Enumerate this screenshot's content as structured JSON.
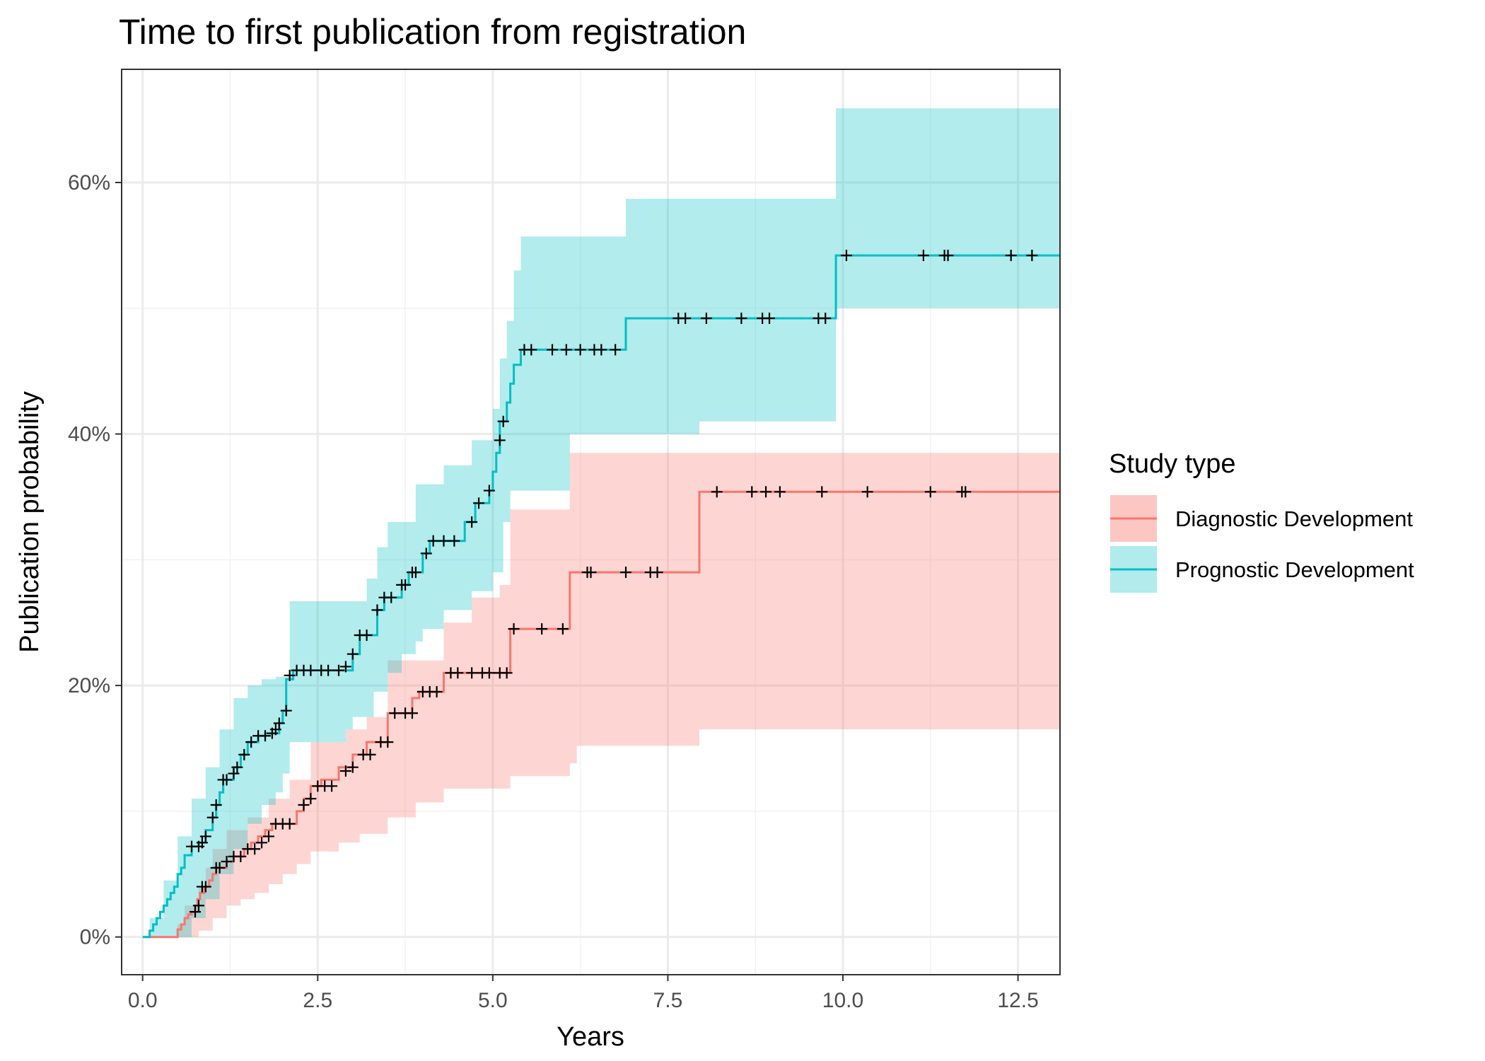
{
  "chart_data": {
    "type": "line",
    "subtype": "kaplan-meier-cumulative-incidence",
    "title": "Time to first publication from registration",
    "xlabel": "Years",
    "ylabel": "Publication probability",
    "xlim": [
      -0.3,
      13.1
    ],
    "ylim": [
      -3,
      69
    ],
    "x_ticks": [
      0,
      2.5,
      5,
      7.5,
      10,
      12.5
    ],
    "x_tick_labels": [
      "0.0",
      "2.5",
      "5.0",
      "7.5",
      "10.0",
      "12.5"
    ],
    "y_ticks": [
      0,
      20,
      40,
      60
    ],
    "y_tick_labels": [
      "0%",
      "20%",
      "40%",
      "60%"
    ],
    "grid": true,
    "legend": {
      "title": "Study type",
      "position": "right",
      "entries": [
        "Diagnostic Development",
        "Prognostic Development"
      ]
    },
    "censor_marker": "+",
    "series": [
      {
        "name": "Diagnostic Development",
        "color": "#F8766D",
        "fill_color": "#FCC7C3",
        "steps": [
          [
            0,
            0
          ],
          [
            0.45,
            0
          ],
          [
            0.5,
            0.6
          ],
          [
            0.55,
            1.0
          ],
          [
            0.6,
            1.5
          ],
          [
            0.65,
            1.8
          ],
          [
            0.7,
            2.0
          ],
          [
            0.75,
            2.5
          ],
          [
            0.78,
            3.0
          ],
          [
            0.82,
            3.5
          ],
          [
            0.88,
            4.0
          ],
          [
            0.95,
            4.5
          ],
          [
            1.0,
            5.0
          ],
          [
            1.05,
            5.5
          ],
          [
            1.2,
            6.0
          ],
          [
            1.3,
            6.4
          ],
          [
            1.45,
            7.0
          ],
          [
            1.55,
            7.5
          ],
          [
            1.65,
            8.0
          ],
          [
            1.75,
            8.5
          ],
          [
            1.85,
            9.0
          ],
          [
            2.2,
            10.0
          ],
          [
            2.3,
            11.0
          ],
          [
            2.4,
            12.0
          ],
          [
            2.55,
            12.5
          ],
          [
            2.8,
            13.5
          ],
          [
            3.0,
            14.5
          ],
          [
            3.2,
            15.5
          ],
          [
            3.5,
            17.8
          ],
          [
            3.85,
            19.0
          ],
          [
            3.95,
            19.5
          ],
          [
            4.3,
            21.0
          ],
          [
            5.25,
            24.5
          ],
          [
            6.1,
            29.0
          ],
          [
            7.95,
            35.4
          ],
          [
            13.1,
            35.4
          ]
        ],
        "lower": [
          [
            0,
            0
          ],
          [
            0.6,
            0
          ],
          [
            0.8,
            0.5
          ],
          [
            1.0,
            1.5
          ],
          [
            1.2,
            2.5
          ],
          [
            1.4,
            3.0
          ],
          [
            1.6,
            3.5
          ],
          [
            1.8,
            4.2
          ],
          [
            2.0,
            5.0
          ],
          [
            2.2,
            5.8
          ],
          [
            2.4,
            6.8
          ],
          [
            2.8,
            7.5
          ],
          [
            3.1,
            8.2
          ],
          [
            3.5,
            9.5
          ],
          [
            3.9,
            10.7
          ],
          [
            4.3,
            11.8
          ],
          [
            5.25,
            12.8
          ],
          [
            6.1,
            13.8
          ],
          [
            6.2,
            15.2
          ],
          [
            7.95,
            15.2
          ],
          [
            7.95,
            16.5
          ],
          [
            13.1,
            16.5
          ]
        ],
        "upper": [
          [
            0,
            0
          ],
          [
            0.5,
            1.0
          ],
          [
            0.6,
            2.5
          ],
          [
            0.8,
            4.0
          ],
          [
            0.9,
            5.5
          ],
          [
            1.0,
            7.0
          ],
          [
            1.2,
            8.5
          ],
          [
            1.5,
            9.5
          ],
          [
            1.8,
            11.0
          ],
          [
            2.1,
            12.5
          ],
          [
            2.4,
            15.5
          ],
          [
            2.9,
            16.5
          ],
          [
            3.2,
            17.5
          ],
          [
            3.5,
            22.0
          ],
          [
            4.3,
            25.0
          ],
          [
            4.7,
            27.0
          ],
          [
            5.1,
            28.0
          ],
          [
            5.25,
            34.0
          ],
          [
            6.1,
            37.0
          ],
          [
            6.1,
            38.5
          ],
          [
            7.95,
            38.5
          ],
          [
            7.95,
            38.5
          ],
          [
            13.1,
            38.5
          ]
        ],
        "censored": [
          [
            0.75,
            2.0
          ],
          [
            0.8,
            2.5
          ],
          [
            0.85,
            4.0
          ],
          [
            0.9,
            4.0
          ],
          [
            1.05,
            5.5
          ],
          [
            1.1,
            5.5
          ],
          [
            1.2,
            6.0
          ],
          [
            1.3,
            6.4
          ],
          [
            1.4,
            6.4
          ],
          [
            1.5,
            7.0
          ],
          [
            1.6,
            7.0
          ],
          [
            1.7,
            7.5
          ],
          [
            1.8,
            8.0
          ],
          [
            1.9,
            9.0
          ],
          [
            2.0,
            9.0
          ],
          [
            2.1,
            9.0
          ],
          [
            2.3,
            10.5
          ],
          [
            2.4,
            11.0
          ],
          [
            2.5,
            12.0
          ],
          [
            2.6,
            12.0
          ],
          [
            2.7,
            12.0
          ],
          [
            2.9,
            13.2
          ],
          [
            3.0,
            13.5
          ],
          [
            3.15,
            14.5
          ],
          [
            3.25,
            14.5
          ],
          [
            3.4,
            15.5
          ],
          [
            3.5,
            15.5
          ],
          [
            3.6,
            17.8
          ],
          [
            3.75,
            17.8
          ],
          [
            3.85,
            17.8
          ],
          [
            4.0,
            19.5
          ],
          [
            4.1,
            19.5
          ],
          [
            4.2,
            19.5
          ],
          [
            4.4,
            21.0
          ],
          [
            4.5,
            21.0
          ],
          [
            4.7,
            21.0
          ],
          [
            4.85,
            21.0
          ],
          [
            4.95,
            21.0
          ],
          [
            5.1,
            21.0
          ],
          [
            5.2,
            21.0
          ],
          [
            5.3,
            24.5
          ],
          [
            5.7,
            24.5
          ],
          [
            6.0,
            24.5
          ],
          [
            6.35,
            29.0
          ],
          [
            6.4,
            29.0
          ],
          [
            6.9,
            29.0
          ],
          [
            7.25,
            29.0
          ],
          [
            7.35,
            29.0
          ],
          [
            8.2,
            35.4
          ],
          [
            8.7,
            35.4
          ],
          [
            8.9,
            35.4
          ],
          [
            9.1,
            35.4
          ],
          [
            9.7,
            35.4
          ],
          [
            10.35,
            35.4
          ],
          [
            11.25,
            35.4
          ],
          [
            11.7,
            35.4
          ],
          [
            11.75,
            35.4
          ]
        ]
      },
      {
        "name": "Prognostic Development",
        "color": "#00BFC4",
        "fill_color": "#B2EBEC",
        "steps": [
          [
            0,
            0
          ],
          [
            0.1,
            0.5
          ],
          [
            0.15,
            1.0
          ],
          [
            0.2,
            1.5
          ],
          [
            0.25,
            2.0
          ],
          [
            0.3,
            2.5
          ],
          [
            0.35,
            3.0
          ],
          [
            0.4,
            3.5
          ],
          [
            0.45,
            4.0
          ],
          [
            0.5,
            5.0
          ],
          [
            0.55,
            5.5
          ],
          [
            0.6,
            6.5
          ],
          [
            0.7,
            7.2
          ],
          [
            0.8,
            7.5
          ],
          [
            0.9,
            8.5
          ],
          [
            1.0,
            9.5
          ],
          [
            1.05,
            10.5
          ],
          [
            1.1,
            11.5
          ],
          [
            1.15,
            12.5
          ],
          [
            1.3,
            13.5
          ],
          [
            1.4,
            14.5
          ],
          [
            1.5,
            15.5
          ],
          [
            1.65,
            16.0
          ],
          [
            1.75,
            16.2
          ],
          [
            1.95,
            17.0
          ],
          [
            2.0,
            18.0
          ],
          [
            2.05,
            20.5
          ],
          [
            2.15,
            21.2
          ],
          [
            3.0,
            22.5
          ],
          [
            3.1,
            24.0
          ],
          [
            3.35,
            26.0
          ],
          [
            3.45,
            27.0
          ],
          [
            3.7,
            28.0
          ],
          [
            3.8,
            29.0
          ],
          [
            4.0,
            30.5
          ],
          [
            4.1,
            31.5
          ],
          [
            4.6,
            33.0
          ],
          [
            4.75,
            34.5
          ],
          [
            4.95,
            35.5
          ],
          [
            5.0,
            37.0
          ],
          [
            5.05,
            38.5
          ],
          [
            5.1,
            41.0
          ],
          [
            5.2,
            42.5
          ],
          [
            5.25,
            44.0
          ],
          [
            5.3,
            45.5
          ],
          [
            5.4,
            46.7
          ],
          [
            6.9,
            49.2
          ],
          [
            9.9,
            54.2
          ],
          [
            13.1,
            54.2
          ]
        ],
        "lower": [
          [
            0,
            0
          ],
          [
            0.5,
            0
          ],
          [
            0.7,
            1.5
          ],
          [
            0.9,
            3.0
          ],
          [
            1.1,
            5.0
          ],
          [
            1.3,
            7.0
          ],
          [
            1.5,
            9.0
          ],
          [
            1.7,
            10.5
          ],
          [
            1.9,
            11.5
          ],
          [
            2.0,
            13.0
          ],
          [
            2.1,
            15.5
          ],
          [
            2.9,
            16.5
          ],
          [
            3.0,
            17.5
          ],
          [
            3.3,
            19.5
          ],
          [
            3.5,
            21.0
          ],
          [
            3.7,
            22.5
          ],
          [
            3.9,
            23.5
          ],
          [
            4.0,
            24.5
          ],
          [
            4.3,
            26.0
          ],
          [
            4.7,
            27.5
          ],
          [
            5.0,
            29.0
          ],
          [
            5.15,
            33.0
          ],
          [
            5.25,
            35.5
          ],
          [
            6.1,
            35.5
          ],
          [
            6.1,
            40.0
          ],
          [
            7.95,
            40.0
          ],
          [
            7.95,
            41.0
          ],
          [
            9.9,
            41.0
          ],
          [
            9.9,
            50.0
          ],
          [
            13.1,
            50.0
          ]
        ],
        "upper": [
          [
            0,
            0
          ],
          [
            0.1,
            1.5
          ],
          [
            0.3,
            4.5
          ],
          [
            0.5,
            8.0
          ],
          [
            0.7,
            11.0
          ],
          [
            0.9,
            13.5
          ],
          [
            1.1,
            16.5
          ],
          [
            1.3,
            19.0
          ],
          [
            1.5,
            20.0
          ],
          [
            1.7,
            20.5
          ],
          [
            1.9,
            20.7
          ],
          [
            2.1,
            26.7
          ],
          [
            2.9,
            26.7
          ],
          [
            3.2,
            28.5
          ],
          [
            3.35,
            31.0
          ],
          [
            3.5,
            33.0
          ],
          [
            3.9,
            36.0
          ],
          [
            4.3,
            37.5
          ],
          [
            4.7,
            39.5
          ],
          [
            5.0,
            42.0
          ],
          [
            5.1,
            46.0
          ],
          [
            5.2,
            49.0
          ],
          [
            5.3,
            53.0
          ],
          [
            5.4,
            55.7
          ],
          [
            6.9,
            58.7
          ],
          [
            9.9,
            65.9
          ],
          [
            13.1,
            65.9
          ]
        ],
        "censored": [
          [
            0.7,
            7.2
          ],
          [
            0.8,
            7.2
          ],
          [
            0.85,
            7.5
          ],
          [
            0.9,
            8.0
          ],
          [
            1.0,
            9.5
          ],
          [
            1.05,
            10.5
          ],
          [
            1.15,
            12.5
          ],
          [
            1.2,
            12.5
          ],
          [
            1.3,
            13.0
          ],
          [
            1.35,
            13.5
          ],
          [
            1.45,
            14.5
          ],
          [
            1.55,
            15.5
          ],
          [
            1.65,
            16.0
          ],
          [
            1.75,
            16.0
          ],
          [
            1.85,
            16.2
          ],
          [
            1.9,
            16.5
          ],
          [
            1.95,
            17.0
          ],
          [
            2.05,
            18.0
          ],
          [
            2.1,
            20.8
          ],
          [
            2.2,
            21.2
          ],
          [
            2.3,
            21.2
          ],
          [
            2.4,
            21.2
          ],
          [
            2.55,
            21.2
          ],
          [
            2.65,
            21.2
          ],
          [
            2.8,
            21.2
          ],
          [
            2.9,
            21.5
          ],
          [
            3.0,
            22.5
          ],
          [
            3.1,
            24.0
          ],
          [
            3.2,
            24.0
          ],
          [
            3.35,
            26.0
          ],
          [
            3.45,
            27.0
          ],
          [
            3.55,
            27.0
          ],
          [
            3.7,
            28.0
          ],
          [
            3.75,
            28.0
          ],
          [
            3.85,
            29.0
          ],
          [
            3.9,
            29.0
          ],
          [
            4.05,
            30.5
          ],
          [
            4.15,
            31.5
          ],
          [
            4.3,
            31.5
          ],
          [
            4.45,
            31.5
          ],
          [
            4.7,
            33.0
          ],
          [
            4.8,
            34.5
          ],
          [
            4.95,
            35.5
          ],
          [
            5.1,
            39.5
          ],
          [
            5.15,
            41.0
          ],
          [
            5.45,
            46.7
          ],
          [
            5.55,
            46.7
          ],
          [
            5.85,
            46.7
          ],
          [
            6.05,
            46.7
          ],
          [
            6.25,
            46.7
          ],
          [
            6.45,
            46.7
          ],
          [
            6.55,
            46.7
          ],
          [
            6.75,
            46.7
          ],
          [
            7.65,
            49.2
          ],
          [
            7.75,
            49.2
          ],
          [
            8.05,
            49.2
          ],
          [
            8.55,
            49.2
          ],
          [
            8.85,
            49.2
          ],
          [
            8.95,
            49.2
          ],
          [
            9.65,
            49.2
          ],
          [
            9.75,
            49.2
          ],
          [
            10.05,
            54.2
          ],
          [
            11.15,
            54.2
          ],
          [
            11.45,
            54.2
          ],
          [
            11.5,
            54.2
          ],
          [
            12.4,
            54.2
          ],
          [
            12.7,
            54.2
          ]
        ]
      }
    ]
  }
}
